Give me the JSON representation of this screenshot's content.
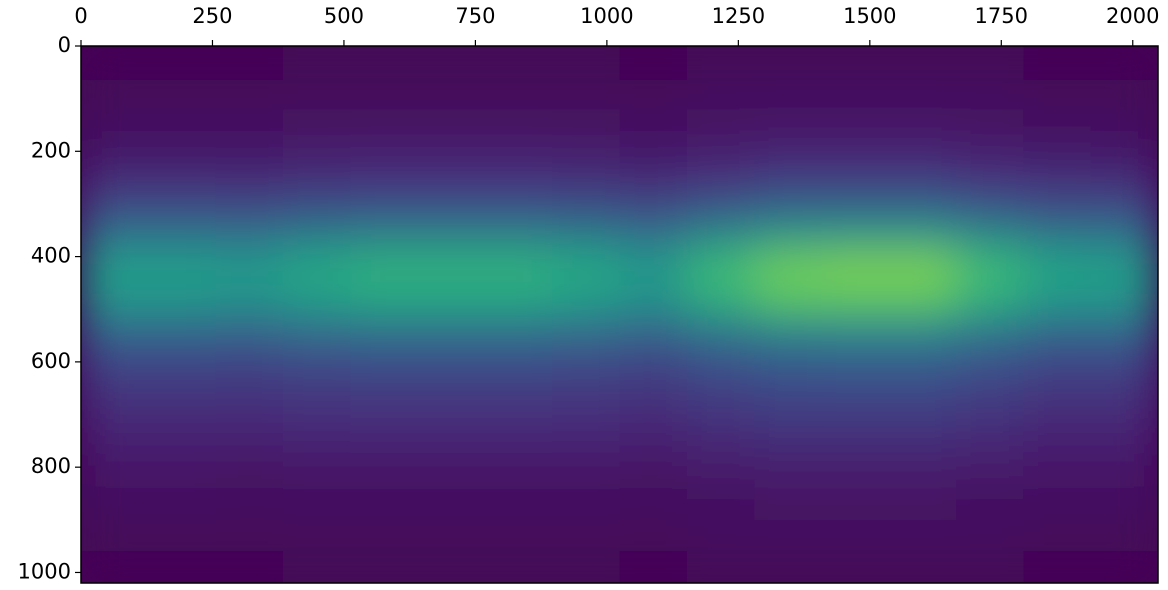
{
  "chart_data": {
    "type": "heatmap",
    "colormap": "viridis",
    "xlim": [
      0,
      2048
    ],
    "ylim": [
      1020,
      0
    ],
    "xticks": [
      0,
      250,
      500,
      750,
      1000,
      1250,
      1500,
      1750,
      2000
    ],
    "yticks": [
      0,
      200,
      400,
      600,
      800,
      1000
    ],
    "x": [
      64,
      192,
      320,
      448,
      576,
      704,
      832,
      960,
      1088,
      1216,
      1344,
      1472,
      1600,
      1728,
      1856,
      1984
    ],
    "y": [
      32,
      96,
      160,
      224,
      288,
      352,
      416,
      480,
      544,
      608,
      672,
      736,
      800,
      864,
      928,
      992
    ],
    "values": [
      [
        0.01,
        0.01,
        0.01,
        0.02,
        0.02,
        0.02,
        0.02,
        0.02,
        0.01,
        0.02,
        0.02,
        0.02,
        0.02,
        0.02,
        0.01,
        0.01
      ],
      [
        0.02,
        0.02,
        0.02,
        0.02,
        0.02,
        0.02,
        0.02,
        0.02,
        0.02,
        0.03,
        0.03,
        0.03,
        0.03,
        0.03,
        0.02,
        0.02
      ],
      [
        0.04,
        0.04,
        0.04,
        0.05,
        0.05,
        0.05,
        0.05,
        0.05,
        0.04,
        0.05,
        0.06,
        0.06,
        0.06,
        0.05,
        0.04,
        0.04
      ],
      [
        0.08,
        0.08,
        0.08,
        0.09,
        0.1,
        0.1,
        0.1,
        0.09,
        0.08,
        0.1,
        0.12,
        0.12,
        0.12,
        0.1,
        0.09,
        0.08
      ],
      [
        0.18,
        0.18,
        0.17,
        0.19,
        0.2,
        0.2,
        0.2,
        0.19,
        0.17,
        0.21,
        0.25,
        0.25,
        0.25,
        0.21,
        0.18,
        0.18
      ],
      [
        0.35,
        0.35,
        0.34,
        0.38,
        0.4,
        0.4,
        0.4,
        0.38,
        0.34,
        0.43,
        0.49,
        0.5,
        0.5,
        0.43,
        0.36,
        0.35
      ],
      [
        0.56,
        0.56,
        0.54,
        0.6,
        0.64,
        0.64,
        0.64,
        0.6,
        0.54,
        0.68,
        0.78,
        0.8,
        0.8,
        0.68,
        0.58,
        0.56
      ],
      [
        0.53,
        0.53,
        0.51,
        0.56,
        0.6,
        0.6,
        0.6,
        0.56,
        0.51,
        0.64,
        0.74,
        0.75,
        0.75,
        0.64,
        0.54,
        0.53
      ],
      [
        0.32,
        0.32,
        0.31,
        0.34,
        0.36,
        0.36,
        0.36,
        0.34,
        0.31,
        0.38,
        0.44,
        0.45,
        0.45,
        0.38,
        0.32,
        0.32
      ],
      [
        0.2,
        0.2,
        0.19,
        0.21,
        0.22,
        0.22,
        0.22,
        0.21,
        0.19,
        0.24,
        0.27,
        0.28,
        0.28,
        0.24,
        0.2,
        0.2
      ],
      [
        0.14,
        0.14,
        0.14,
        0.15,
        0.16,
        0.16,
        0.16,
        0.15,
        0.14,
        0.17,
        0.2,
        0.2,
        0.2,
        0.17,
        0.14,
        0.14
      ],
      [
        0.1,
        0.1,
        0.1,
        0.11,
        0.11,
        0.11,
        0.11,
        0.11,
        0.1,
        0.12,
        0.14,
        0.14,
        0.14,
        0.12,
        0.1,
        0.1
      ],
      [
        0.06,
        0.06,
        0.05,
        0.06,
        0.06,
        0.06,
        0.06,
        0.06,
        0.05,
        0.07,
        0.08,
        0.08,
        0.08,
        0.07,
        0.06,
        0.06
      ],
      [
        0.04,
        0.04,
        0.03,
        0.04,
        0.04,
        0.04,
        0.04,
        0.04,
        0.03,
        0.04,
        0.05,
        0.05,
        0.05,
        0.04,
        0.04,
        0.04
      ],
      [
        0.02,
        0.02,
        0.02,
        0.02,
        0.02,
        0.02,
        0.02,
        0.02,
        0.02,
        0.03,
        0.03,
        0.03,
        0.03,
        0.03,
        0.02,
        0.02
      ],
      [
        0.01,
        0.01,
        0.01,
        0.02,
        0.02,
        0.02,
        0.02,
        0.02,
        0.01,
        0.02,
        0.02,
        0.02,
        0.02,
        0.02,
        0.01,
        0.01
      ]
    ]
  }
}
